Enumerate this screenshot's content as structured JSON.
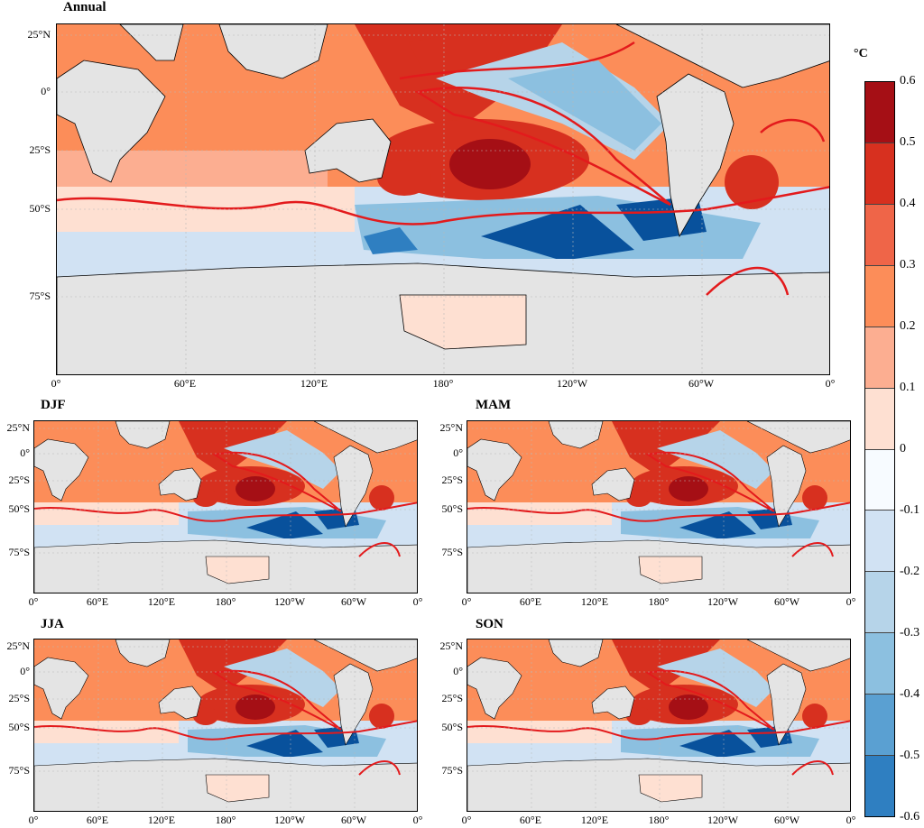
{
  "panels": [
    {
      "id": "annual",
      "title": "Annual"
    },
    {
      "id": "djf",
      "title": "DJF"
    },
    {
      "id": "mam",
      "title": "MAM"
    },
    {
      "id": "jja",
      "title": "JJA"
    },
    {
      "id": "son",
      "title": "SON"
    }
  ],
  "lat_ticks": [
    "25°N",
    "0°",
    "25°S",
    "50°S",
    "75°S"
  ],
  "lon_ticks": [
    "0°",
    "60°E",
    "120°E",
    "180°",
    "120°W",
    "60°W",
    "0°"
  ],
  "colorbar": {
    "unit": "°C",
    "ticks": [
      "0.6",
      "0.5",
      "0.4",
      "0.3",
      "0.2",
      "0.1",
      "0",
      "-0.1",
      "-0.2",
      "-0.3",
      "-0.4",
      "-0.5",
      "-0.6"
    ],
    "colors": [
      "#a50f15",
      "#d7301f",
      "#ef6548",
      "#fc8d59",
      "#fcae91",
      "#fee0d2",
      "#f7fbff",
      "#d1e2f3",
      "#b6d4e9",
      "#8cc0e0",
      "#5aa0d2",
      "#2f7fc1",
      "#08519c"
    ]
  }
}
